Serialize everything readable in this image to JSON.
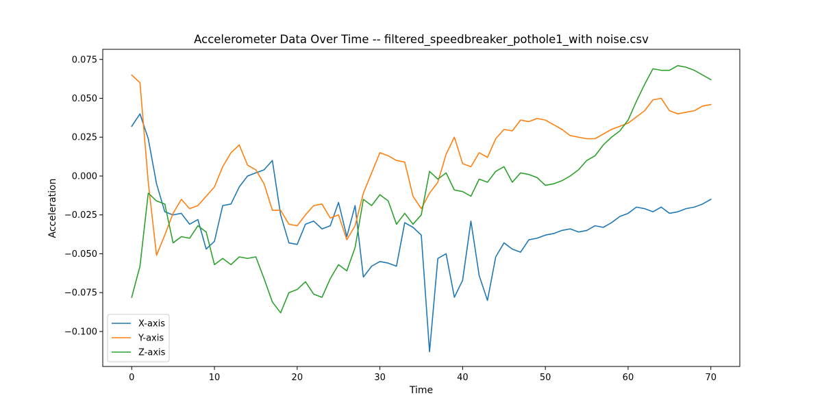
{
  "chart_data": {
    "type": "line",
    "title": "Accelerometer Data Over Time -- filtered_speedbreaker_pothole1_with noise.csv",
    "xlabel": "Time",
    "ylabel": "Acceleration",
    "xlim": [
      -3.5,
      73.5
    ],
    "ylim": [
      -0.1225,
      0.0815
    ],
    "xticks": [
      0,
      10,
      20,
      30,
      40,
      50,
      60,
      70
    ],
    "yticks": [
      -0.1,
      -0.075,
      -0.05,
      -0.025,
      0.0,
      0.025,
      0.05,
      0.075
    ],
    "xtick_labels": [
      "0",
      "10",
      "20",
      "30",
      "40",
      "50",
      "60",
      "70"
    ],
    "ytick_labels": [
      "−0.100",
      "−0.075",
      "−0.050",
      "−0.025",
      "0.000",
      "0.025",
      "0.050",
      "0.075"
    ],
    "grid": false,
    "legend_position": "lower-left",
    "x": [
      0,
      1,
      2,
      3,
      4,
      5,
      6,
      7,
      8,
      9,
      10,
      11,
      12,
      13,
      14,
      15,
      16,
      17,
      18,
      19,
      20,
      21,
      22,
      23,
      24,
      25,
      26,
      27,
      28,
      29,
      30,
      31,
      32,
      33,
      34,
      35,
      36,
      37,
      38,
      39,
      40,
      41,
      42,
      43,
      44,
      45,
      46,
      47,
      48,
      49,
      50,
      51,
      52,
      53,
      54,
      55,
      56,
      57,
      58,
      59,
      60,
      61,
      62,
      63,
      64,
      65,
      66,
      67,
      68,
      69,
      70
    ],
    "series": [
      {
        "name": "X-axis",
        "color": "#1f77b4",
        "values": [
          0.032,
          0.04,
          0.024,
          -0.005,
          -0.023,
          -0.025,
          -0.024,
          -0.031,
          -0.028,
          -0.047,
          -0.042,
          -0.019,
          -0.018,
          -0.007,
          0.0,
          0.002,
          0.004,
          0.01,
          -0.025,
          -0.043,
          -0.044,
          -0.031,
          -0.029,
          -0.034,
          -0.032,
          -0.017,
          -0.039,
          -0.019,
          -0.065,
          -0.058,
          -0.055,
          -0.056,
          -0.058,
          -0.03,
          -0.033,
          -0.038,
          -0.113,
          -0.053,
          -0.05,
          -0.078,
          -0.067,
          -0.029,
          -0.064,
          -0.08,
          -0.052,
          -0.043,
          -0.047,
          -0.049,
          -0.041,
          -0.04,
          -0.038,
          -0.037,
          -0.035,
          -0.034,
          -0.036,
          -0.035,
          -0.032,
          -0.033,
          -0.03,
          -0.026,
          -0.024,
          -0.02,
          -0.021,
          -0.023,
          -0.02,
          -0.024,
          -0.023,
          -0.021,
          -0.02,
          -0.018,
          -0.015
        ]
      },
      {
        "name": "Y-axis",
        "color": "#ff7f0e",
        "values": [
          0.065,
          0.06,
          -0.004,
          -0.051,
          -0.038,
          -0.024,
          -0.015,
          -0.021,
          -0.019,
          -0.013,
          -0.007,
          0.006,
          0.015,
          0.02,
          0.007,
          0.004,
          -0.005,
          -0.022,
          -0.022,
          -0.031,
          -0.032,
          -0.025,
          -0.019,
          -0.018,
          -0.027,
          -0.025,
          -0.041,
          -0.032,
          -0.011,
          0.002,
          0.015,
          0.013,
          0.01,
          0.009,
          -0.013,
          -0.021,
          -0.011,
          -0.004,
          0.014,
          0.025,
          0.008,
          0.006,
          0.015,
          0.012,
          0.024,
          0.03,
          0.029,
          0.036,
          0.035,
          0.037,
          0.036,
          0.033,
          0.03,
          0.026,
          0.025,
          0.024,
          0.024,
          0.027,
          0.03,
          0.032,
          0.034,
          0.038,
          0.042,
          0.049,
          0.05,
          0.042,
          0.04,
          0.041,
          0.042,
          0.045,
          0.046
        ]
      },
      {
        "name": "Z-axis",
        "color": "#2ca02c",
        "values": [
          -0.078,
          -0.058,
          -0.011,
          -0.016,
          -0.018,
          -0.043,
          -0.039,
          -0.04,
          -0.032,
          -0.036,
          -0.057,
          -0.053,
          -0.057,
          -0.052,
          -0.053,
          -0.052,
          -0.066,
          -0.081,
          -0.088,
          -0.075,
          -0.073,
          -0.068,
          -0.076,
          -0.078,
          -0.066,
          -0.057,
          -0.061,
          -0.046,
          -0.015,
          -0.019,
          -0.012,
          -0.016,
          -0.031,
          -0.024,
          -0.031,
          -0.025,
          0.003,
          -0.002,
          0.002,
          -0.009,
          -0.01,
          -0.013,
          -0.002,
          -0.004,
          0.003,
          0.006,
          -0.004,
          0.002,
          0.001,
          -0.001,
          -0.006,
          -0.005,
          -0.003,
          0.0,
          0.004,
          0.01,
          0.013,
          0.02,
          0.025,
          0.029,
          0.036,
          0.048,
          0.059,
          0.069,
          0.068,
          0.068,
          0.071,
          0.07,
          0.068,
          0.065,
          0.062
        ]
      }
    ]
  }
}
